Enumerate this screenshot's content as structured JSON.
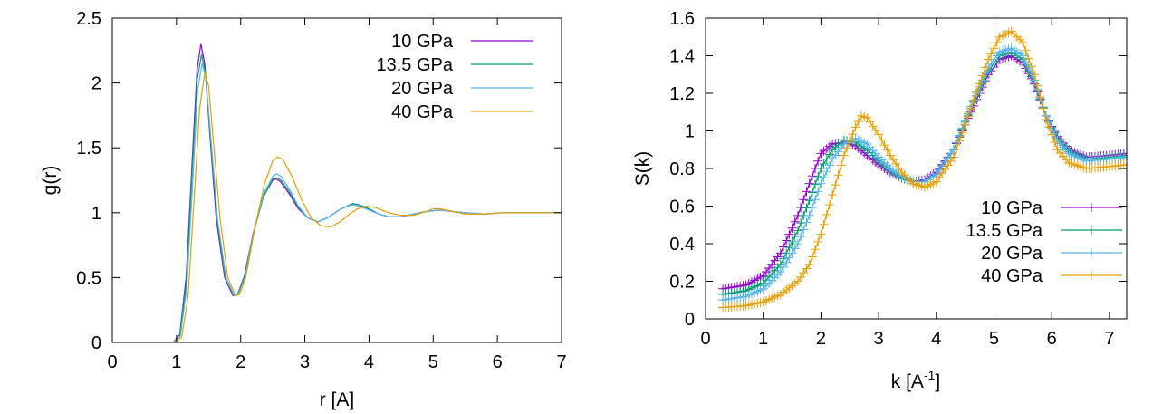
{
  "chart_data": [
    {
      "type": "line",
      "xlabel": "r [A]",
      "ylabel": "g(r)",
      "xlim": [
        0,
        7
      ],
      "ylim": [
        0,
        2.5
      ],
      "xticks": [
        "0",
        "1",
        "2",
        "3",
        "4",
        "5",
        "6",
        "7"
      ],
      "yticks": [
        "0",
        "0.5",
        "1",
        "1.5",
        "2",
        "2.5"
      ],
      "grid": false,
      "legend_position": "top-right",
      "series": [
        {
          "name": "10 GPa",
          "color": "#9400d3",
          "x": [
            0,
            0.95,
            1.05,
            1.15,
            1.25,
            1.32,
            1.38,
            1.44,
            1.52,
            1.62,
            1.75,
            1.88,
            1.95,
            2.05,
            2.2,
            2.35,
            2.5,
            2.55,
            2.62,
            2.75,
            2.9,
            3.05,
            3.2,
            3.35,
            3.5,
            3.65,
            3.75,
            3.85,
            4.0,
            4.15,
            4.3,
            4.5,
            4.7,
            4.9,
            5.1,
            5.3,
            5.5,
            5.8,
            6.1,
            6.4,
            6.7,
            7.0
          ],
          "y": [
            0,
            0,
            0.06,
            0.5,
            1.45,
            2.1,
            2.3,
            2.15,
            1.6,
            0.95,
            0.5,
            0.36,
            0.37,
            0.5,
            0.85,
            1.12,
            1.25,
            1.26,
            1.24,
            1.15,
            1.03,
            0.96,
            0.93,
            0.96,
            1.01,
            1.05,
            1.07,
            1.06,
            1.03,
            0.99,
            0.97,
            0.97,
            0.99,
            1.01,
            1.02,
            1.01,
            1.0,
            0.99,
            1.0,
            1.0,
            1.0,
            1.0
          ]
        },
        {
          "name": "13.5 GPa",
          "color": "#009e73",
          "x": [
            0,
            0.95,
            1.05,
            1.15,
            1.25,
            1.32,
            1.39,
            1.45,
            1.53,
            1.63,
            1.76,
            1.89,
            1.95,
            2.05,
            2.2,
            2.35,
            2.5,
            2.56,
            2.63,
            2.76,
            2.9,
            3.05,
            3.2,
            3.35,
            3.5,
            3.65,
            3.75,
            3.85,
            4.0,
            4.15,
            4.3,
            4.5,
            4.7,
            4.9,
            5.1,
            5.3,
            5.5,
            5.8,
            6.1,
            6.4,
            6.7,
            7.0
          ],
          "y": [
            0,
            0,
            0.05,
            0.45,
            1.38,
            2.02,
            2.22,
            2.08,
            1.57,
            0.95,
            0.5,
            0.36,
            0.37,
            0.49,
            0.84,
            1.12,
            1.26,
            1.27,
            1.25,
            1.16,
            1.04,
            0.96,
            0.93,
            0.96,
            1.01,
            1.05,
            1.07,
            1.06,
            1.03,
            0.99,
            0.97,
            0.97,
            0.99,
            1.01,
            1.02,
            1.01,
            1.0,
            0.99,
            1.0,
            1.0,
            1.0,
            1.0
          ]
        },
        {
          "name": "20 GPa",
          "color": "#56b4e9",
          "x": [
            0,
            0.96,
            1.06,
            1.16,
            1.26,
            1.33,
            1.4,
            1.46,
            1.54,
            1.64,
            1.77,
            1.9,
            1.96,
            2.06,
            2.2,
            2.35,
            2.5,
            2.56,
            2.63,
            2.76,
            2.9,
            3.05,
            3.2,
            3.35,
            3.5,
            3.65,
            3.75,
            3.85,
            4.0,
            4.15,
            4.3,
            4.5,
            4.7,
            4.9,
            5.1,
            5.3,
            5.5,
            5.8,
            6.1,
            6.4,
            6.7,
            7.0
          ],
          "y": [
            0,
            0,
            0.05,
            0.42,
            1.3,
            1.95,
            2.15,
            2.03,
            1.55,
            0.95,
            0.5,
            0.36,
            0.37,
            0.49,
            0.84,
            1.14,
            1.28,
            1.3,
            1.28,
            1.18,
            1.05,
            0.96,
            0.93,
            0.96,
            1.01,
            1.05,
            1.06,
            1.05,
            1.02,
            0.99,
            0.97,
            0.97,
            0.99,
            1.01,
            1.02,
            1.01,
            1.0,
            0.99,
            1.0,
            1.0,
            1.0,
            1.0
          ]
        },
        {
          "name": "40 GPa",
          "color": "#e69f00",
          "x": [
            0,
            0.98,
            1.08,
            1.18,
            1.28,
            1.36,
            1.44,
            1.5,
            1.58,
            1.68,
            1.8,
            1.92,
            1.98,
            2.08,
            2.22,
            2.37,
            2.5,
            2.58,
            2.66,
            2.8,
            2.95,
            3.1,
            3.25,
            3.4,
            3.55,
            3.7,
            3.82,
            3.95,
            4.1,
            4.3,
            4.5,
            4.7,
            4.9,
            5.0,
            5.1,
            5.3,
            5.5,
            5.8,
            6.1,
            6.4,
            6.7,
            7.0
          ],
          "y": [
            0,
            0,
            0.04,
            0.35,
            1.15,
            1.8,
            2.08,
            1.98,
            1.52,
            0.95,
            0.5,
            0.36,
            0.37,
            0.5,
            0.88,
            1.22,
            1.4,
            1.43,
            1.41,
            1.28,
            1.1,
            0.96,
            0.9,
            0.89,
            0.93,
            0.99,
            1.03,
            1.05,
            1.04,
            1.0,
            0.98,
            0.98,
            1.01,
            1.03,
            1.03,
            1.01,
            0.99,
            0.99,
            1.0,
            1.0,
            1.0,
            1.0
          ]
        }
      ]
    },
    {
      "type": "line",
      "xlabel": "k [A",
      "xlabel_sup": "-1",
      "xlabel_end": "]",
      "ylabel": "S(k)",
      "xlim": [
        0,
        7.3
      ],
      "ylim": [
        0,
        1.6
      ],
      "xticks": [
        "0",
        "1",
        "2",
        "3",
        "4",
        "5",
        "6",
        "7"
      ],
      "yticks": [
        "0",
        "0.2",
        "0.4",
        "0.6",
        "0.8",
        "1",
        "1.2",
        "1.4",
        "1.6"
      ],
      "grid": false,
      "markers": "plus",
      "legend_position": "right",
      "series": [
        {
          "name": "10 GPa",
          "color": "#9400d3",
          "x": [
            0.3,
            0.7,
            1.0,
            1.3,
            1.6,
            1.8,
            2.0,
            2.2,
            2.4,
            2.6,
            2.8,
            3.0,
            3.2,
            3.4,
            3.6,
            3.8,
            4.0,
            4.3,
            4.6,
            4.9,
            5.1,
            5.3,
            5.5,
            5.7,
            5.9,
            6.1,
            6.3,
            6.6,
            7.0,
            7.3
          ],
          "x_step": 0.05,
          "y": [
            0.16,
            0.18,
            0.23,
            0.35,
            0.55,
            0.72,
            0.88,
            0.93,
            0.94,
            0.92,
            0.87,
            0.82,
            0.78,
            0.75,
            0.73,
            0.74,
            0.78,
            0.9,
            1.1,
            1.3,
            1.38,
            1.4,
            1.36,
            1.25,
            1.08,
            0.97,
            0.9,
            0.86,
            0.87,
            0.88
          ]
        },
        {
          "name": "13.5 GPa",
          "color": "#009e73",
          "x": [
            0.3,
            0.7,
            1.0,
            1.3,
            1.6,
            1.8,
            2.0,
            2.2,
            2.4,
            2.6,
            2.8,
            3.0,
            3.2,
            3.4,
            3.6,
            3.8,
            4.0,
            4.3,
            4.6,
            4.9,
            5.1,
            5.3,
            5.5,
            5.7,
            5.9,
            6.1,
            6.3,
            6.6,
            7.0,
            7.3
          ],
          "y": [
            0.13,
            0.15,
            0.19,
            0.29,
            0.47,
            0.63,
            0.8,
            0.9,
            0.95,
            0.94,
            0.9,
            0.84,
            0.79,
            0.75,
            0.73,
            0.73,
            0.77,
            0.9,
            1.12,
            1.32,
            1.4,
            1.42,
            1.38,
            1.26,
            1.08,
            0.96,
            0.89,
            0.85,
            0.86,
            0.87
          ]
        },
        {
          "name": "20 GPa",
          "color": "#56b4e9",
          "x": [
            0.3,
            0.7,
            1.0,
            1.3,
            1.6,
            1.8,
            2.0,
            2.2,
            2.4,
            2.6,
            2.8,
            3.0,
            3.2,
            3.4,
            3.6,
            3.8,
            4.0,
            4.3,
            4.6,
            4.9,
            5.1,
            5.3,
            5.5,
            5.7,
            5.9,
            6.1,
            6.3,
            6.6,
            7.0,
            7.3
          ],
          "y": [
            0.1,
            0.12,
            0.16,
            0.25,
            0.4,
            0.55,
            0.72,
            0.85,
            0.93,
            0.96,
            0.93,
            0.86,
            0.8,
            0.76,
            0.73,
            0.73,
            0.77,
            0.9,
            1.13,
            1.34,
            1.42,
            1.44,
            1.4,
            1.27,
            1.08,
            0.95,
            0.88,
            0.84,
            0.85,
            0.86
          ]
        },
        {
          "name": "40 GPa",
          "color": "#e69f00",
          "x": [
            0.3,
            0.7,
            1.0,
            1.3,
            1.6,
            1.8,
            2.0,
            2.2,
            2.4,
            2.6,
            2.7,
            2.8,
            3.0,
            3.2,
            3.4,
            3.6,
            3.8,
            4.0,
            4.3,
            4.6,
            4.9,
            5.1,
            5.3,
            5.5,
            5.7,
            5.9,
            6.1,
            6.3,
            6.6,
            7.0,
            7.3
          ],
          "y": [
            0.06,
            0.07,
            0.09,
            0.13,
            0.2,
            0.29,
            0.45,
            0.66,
            0.87,
            1.02,
            1.08,
            1.07,
            0.98,
            0.87,
            0.78,
            0.72,
            0.7,
            0.73,
            0.86,
            1.12,
            1.38,
            1.5,
            1.53,
            1.47,
            1.3,
            1.06,
            0.9,
            0.83,
            0.8,
            0.81,
            0.82
          ]
        }
      ]
    }
  ]
}
